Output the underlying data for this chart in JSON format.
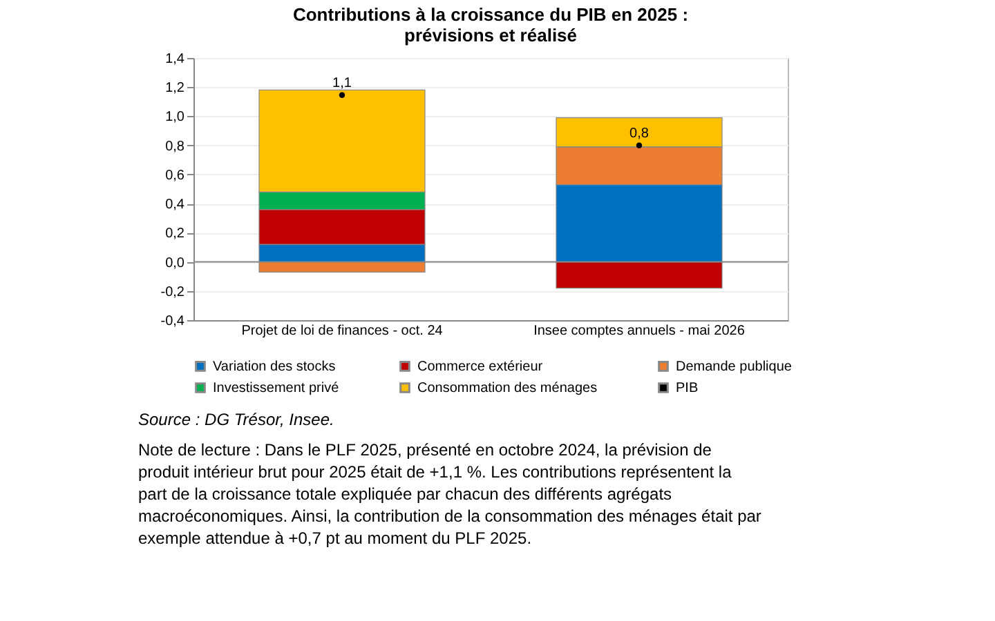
{
  "chart_data": {
    "type": "bar",
    "stacked": true,
    "title": "Contributions à la croissance du PIB en 2025 :\nprévisions et réalisé",
    "categories": [
      "Projet de loi de finances - oct. 24",
      "Insee comptes annuels - mai 2026"
    ],
    "series": [
      {
        "name": "Variation des stocks",
        "color": "#0070c0",
        "values": [
          0.12,
          0.53
        ]
      },
      {
        "name": "Commerce extérieur",
        "color": "#c00000",
        "values": [
          0.24,
          -0.18
        ]
      },
      {
        "name": "Demande publique",
        "color": "#ed7d31",
        "values": [
          -0.07,
          0.26
        ]
      },
      {
        "name": "Investissement privé",
        "color": "#00b050",
        "values": [
          0.12,
          0.0
        ]
      },
      {
        "name": "Consommation des ménages",
        "color": "#ffc000",
        "values": [
          0.7,
          0.2
        ]
      },
      {
        "name": "PIB",
        "type": "scatter",
        "color": "#000000",
        "values": [
          1.145,
          0.8
        ],
        "value_labels": [
          "1,1",
          "0,8"
        ]
      }
    ],
    "ylim": [
      -0.4,
      1.4
    ],
    "yticks": [
      {
        "value": -0.4,
        "label": "-0,4"
      },
      {
        "value": -0.2,
        "label": "-0,2"
      },
      {
        "value": 0,
        "label": "0,0"
      },
      {
        "value": 0.2,
        "label": "0,2"
      },
      {
        "value": 0.4,
        "label": "0,4"
      },
      {
        "value": 0.6,
        "label": "0,6"
      },
      {
        "value": 0.8,
        "label": "0,8"
      },
      {
        "value": 1.0,
        "label": "1,0"
      },
      {
        "value": 1.2,
        "label": "1,2"
      },
      {
        "value": 1.4,
        "label": "1,4"
      }
    ],
    "grid": "y",
    "legend": "bottom",
    "marker": "circle",
    "annotations": [
      "Source : DG Trésor, Insee.",
      "Note de lecture : Dans le PLF 2025, présenté en octobre 2024, la prévision de produit intérieur brut pour 2025 était de +1,1 %. Les contributions représentent la part de la croissance totale expliquée par chacun des différents agrégats macroéconomiques. Ainsi, la contribution de la consommation des ménages était par exemple attendue à +0,7 pt au moment du PLF 2025."
    ]
  }
}
